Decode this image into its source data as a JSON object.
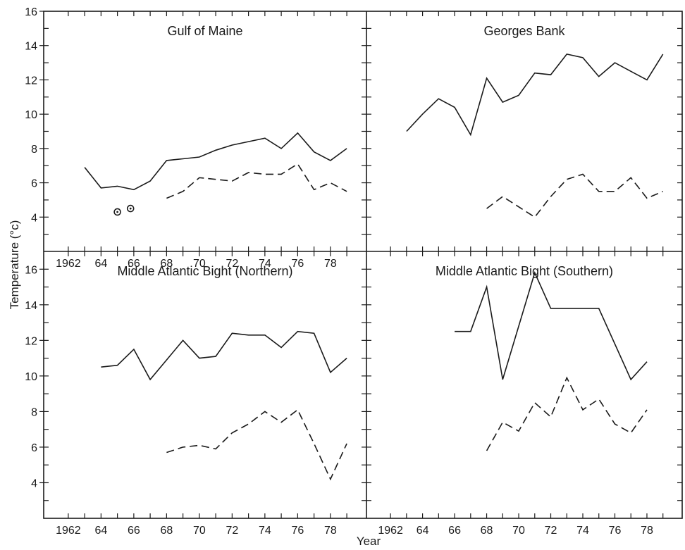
{
  "figure": {
    "ylabel": "Temperature (°c)",
    "xlabel": "Year"
  },
  "chart_data": [
    {
      "type": "line",
      "title": "Gulf of Maine",
      "ylim": [
        2,
        16
      ],
      "y_ticks": [
        "4",
        "6",
        "8",
        "10",
        "12",
        "14",
        "16"
      ],
      "x_ticks": [
        "1962",
        "64",
        "66",
        "68",
        "70",
        "72",
        "74",
        "76",
        "78"
      ],
      "series": [
        {
          "style": "solid",
          "x": [
            1963,
            1964,
            1965,
            1966,
            1967,
            1968,
            1969,
            1970,
            1971,
            1972,
            1973,
            1974,
            1975,
            1976,
            1977,
            1978,
            1979
          ],
          "y": [
            6.9,
            5.7,
            5.8,
            5.6,
            6.1,
            7.3,
            7.4,
            7.5,
            7.9,
            8.2,
            8.4,
            8.6,
            8.0,
            8.9,
            7.8,
            7.3,
            8.0
          ]
        },
        {
          "style": "dashed",
          "x": [
            1968,
            1969,
            1970,
            1971,
            1972,
            1973,
            1974,
            1975,
            1976,
            1977,
            1978,
            1979
          ],
          "y": [
            5.1,
            5.5,
            6.3,
            6.2,
            6.1,
            6.6,
            6.5,
            6.5,
            7.1,
            5.6,
            6.0,
            5.5
          ]
        },
        {
          "style": "circled-dot",
          "x": [
            1965,
            1965.8
          ],
          "y": [
            4.3,
            4.5
          ]
        }
      ]
    },
    {
      "type": "line",
      "title": "Georges Bank",
      "ylim": [
        2,
        16
      ],
      "y_ticks": [],
      "x_ticks": [],
      "series": [
        {
          "style": "solid",
          "x": [
            1963,
            1964,
            1965,
            1966,
            1967,
            1968,
            1969,
            1970,
            1971,
            1972,
            1973,
            1974,
            1975,
            1976,
            1977,
            1978,
            1979
          ],
          "y": [
            9.0,
            10.0,
            10.9,
            10.4,
            8.8,
            12.1,
            10.7,
            11.1,
            12.4,
            12.3,
            13.5,
            13.3,
            12.2,
            13.0,
            12.5,
            12.0,
            13.5
          ]
        },
        {
          "style": "dashed",
          "x": [
            1968,
            1969,
            1970,
            1971,
            1972,
            1973,
            1974,
            1975,
            1976,
            1977,
            1978,
            1979
          ],
          "y": [
            4.5,
            5.2,
            4.6,
            4.0,
            5.2,
            6.2,
            6.5,
            5.5,
            5.5,
            6.3,
            5.1,
            5.5
          ]
        }
      ]
    },
    {
      "type": "line",
      "title": "Middle Atlantic Bight (Northern)",
      "ylim": [
        2,
        17
      ],
      "y_ticks": [
        "4",
        "6",
        "8",
        "10",
        "12",
        "14",
        "16"
      ],
      "x_ticks": [
        "1962",
        "64",
        "66",
        "68",
        "70",
        "72",
        "74",
        "76",
        "78"
      ],
      "series": [
        {
          "style": "solid",
          "x": [
            1964,
            1965,
            1966,
            1967,
            1968,
            1969,
            1970,
            1971,
            1972,
            1973,
            1974,
            1975,
            1976,
            1977,
            1978,
            1979
          ],
          "y": [
            10.5,
            10.6,
            11.5,
            9.8,
            10.9,
            12.0,
            11.0,
            11.1,
            12.4,
            12.3,
            12.3,
            11.6,
            12.5,
            12.4,
            10.2,
            11.0
          ]
        },
        {
          "style": "dashed",
          "x": [
            1968,
            1969,
            1970,
            1971,
            1972,
            1973,
            1974,
            1975,
            1976,
            1977,
            1978,
            1979
          ],
          "y": [
            5.7,
            6.0,
            6.1,
            5.9,
            6.8,
            7.3,
            8.0,
            7.4,
            8.1,
            6.2,
            4.2,
            6.2
          ]
        }
      ]
    },
    {
      "type": "line",
      "title": "Middle Atlantic Bight (Southern)",
      "ylim": [
        2,
        17
      ],
      "y_ticks": [],
      "x_ticks": [
        "1962",
        "64",
        "66",
        "68",
        "70",
        "72",
        "74",
        "76",
        "78"
      ],
      "series": [
        {
          "style": "solid",
          "x": [
            1966,
            1967,
            1968,
            1969,
            1971,
            1972,
            1973,
            1974,
            1975,
            1977,
            1978
          ],
          "y": [
            12.5,
            12.5,
            15.0,
            9.8,
            15.8,
            13.8,
            13.8,
            13.8,
            13.8,
            9.8,
            10.8
          ]
        },
        {
          "style": "dashed",
          "x": [
            1968,
            1969,
            1970,
            1971,
            1972,
            1973,
            1974,
            1975,
            1976,
            1977,
            1978
          ],
          "y": [
            5.8,
            7.4,
            6.9,
            8.5,
            7.7,
            9.9,
            8.1,
            8.7,
            7.3,
            6.8,
            8.1
          ]
        }
      ]
    }
  ]
}
